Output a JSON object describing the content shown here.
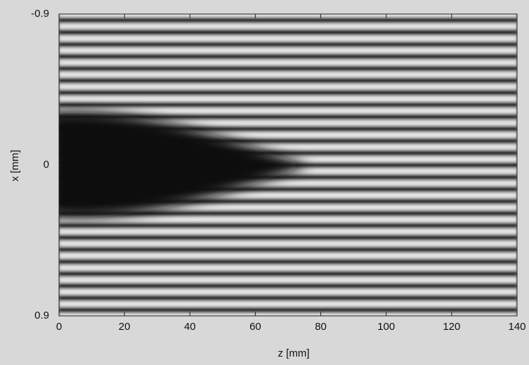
{
  "chart_data": {
    "type": "image",
    "xlabel": "z [mm]",
    "ylabel": "x [mm]",
    "xlim": [
      0,
      140
    ],
    "xticks": [
      0,
      20,
      40,
      60,
      80,
      100,
      120,
      140
    ],
    "ylim": [
      -0.9,
      0.9
    ],
    "yticks": [
      -0.9,
      0,
      0.9
    ],
    "y_inverted": true
  }
}
